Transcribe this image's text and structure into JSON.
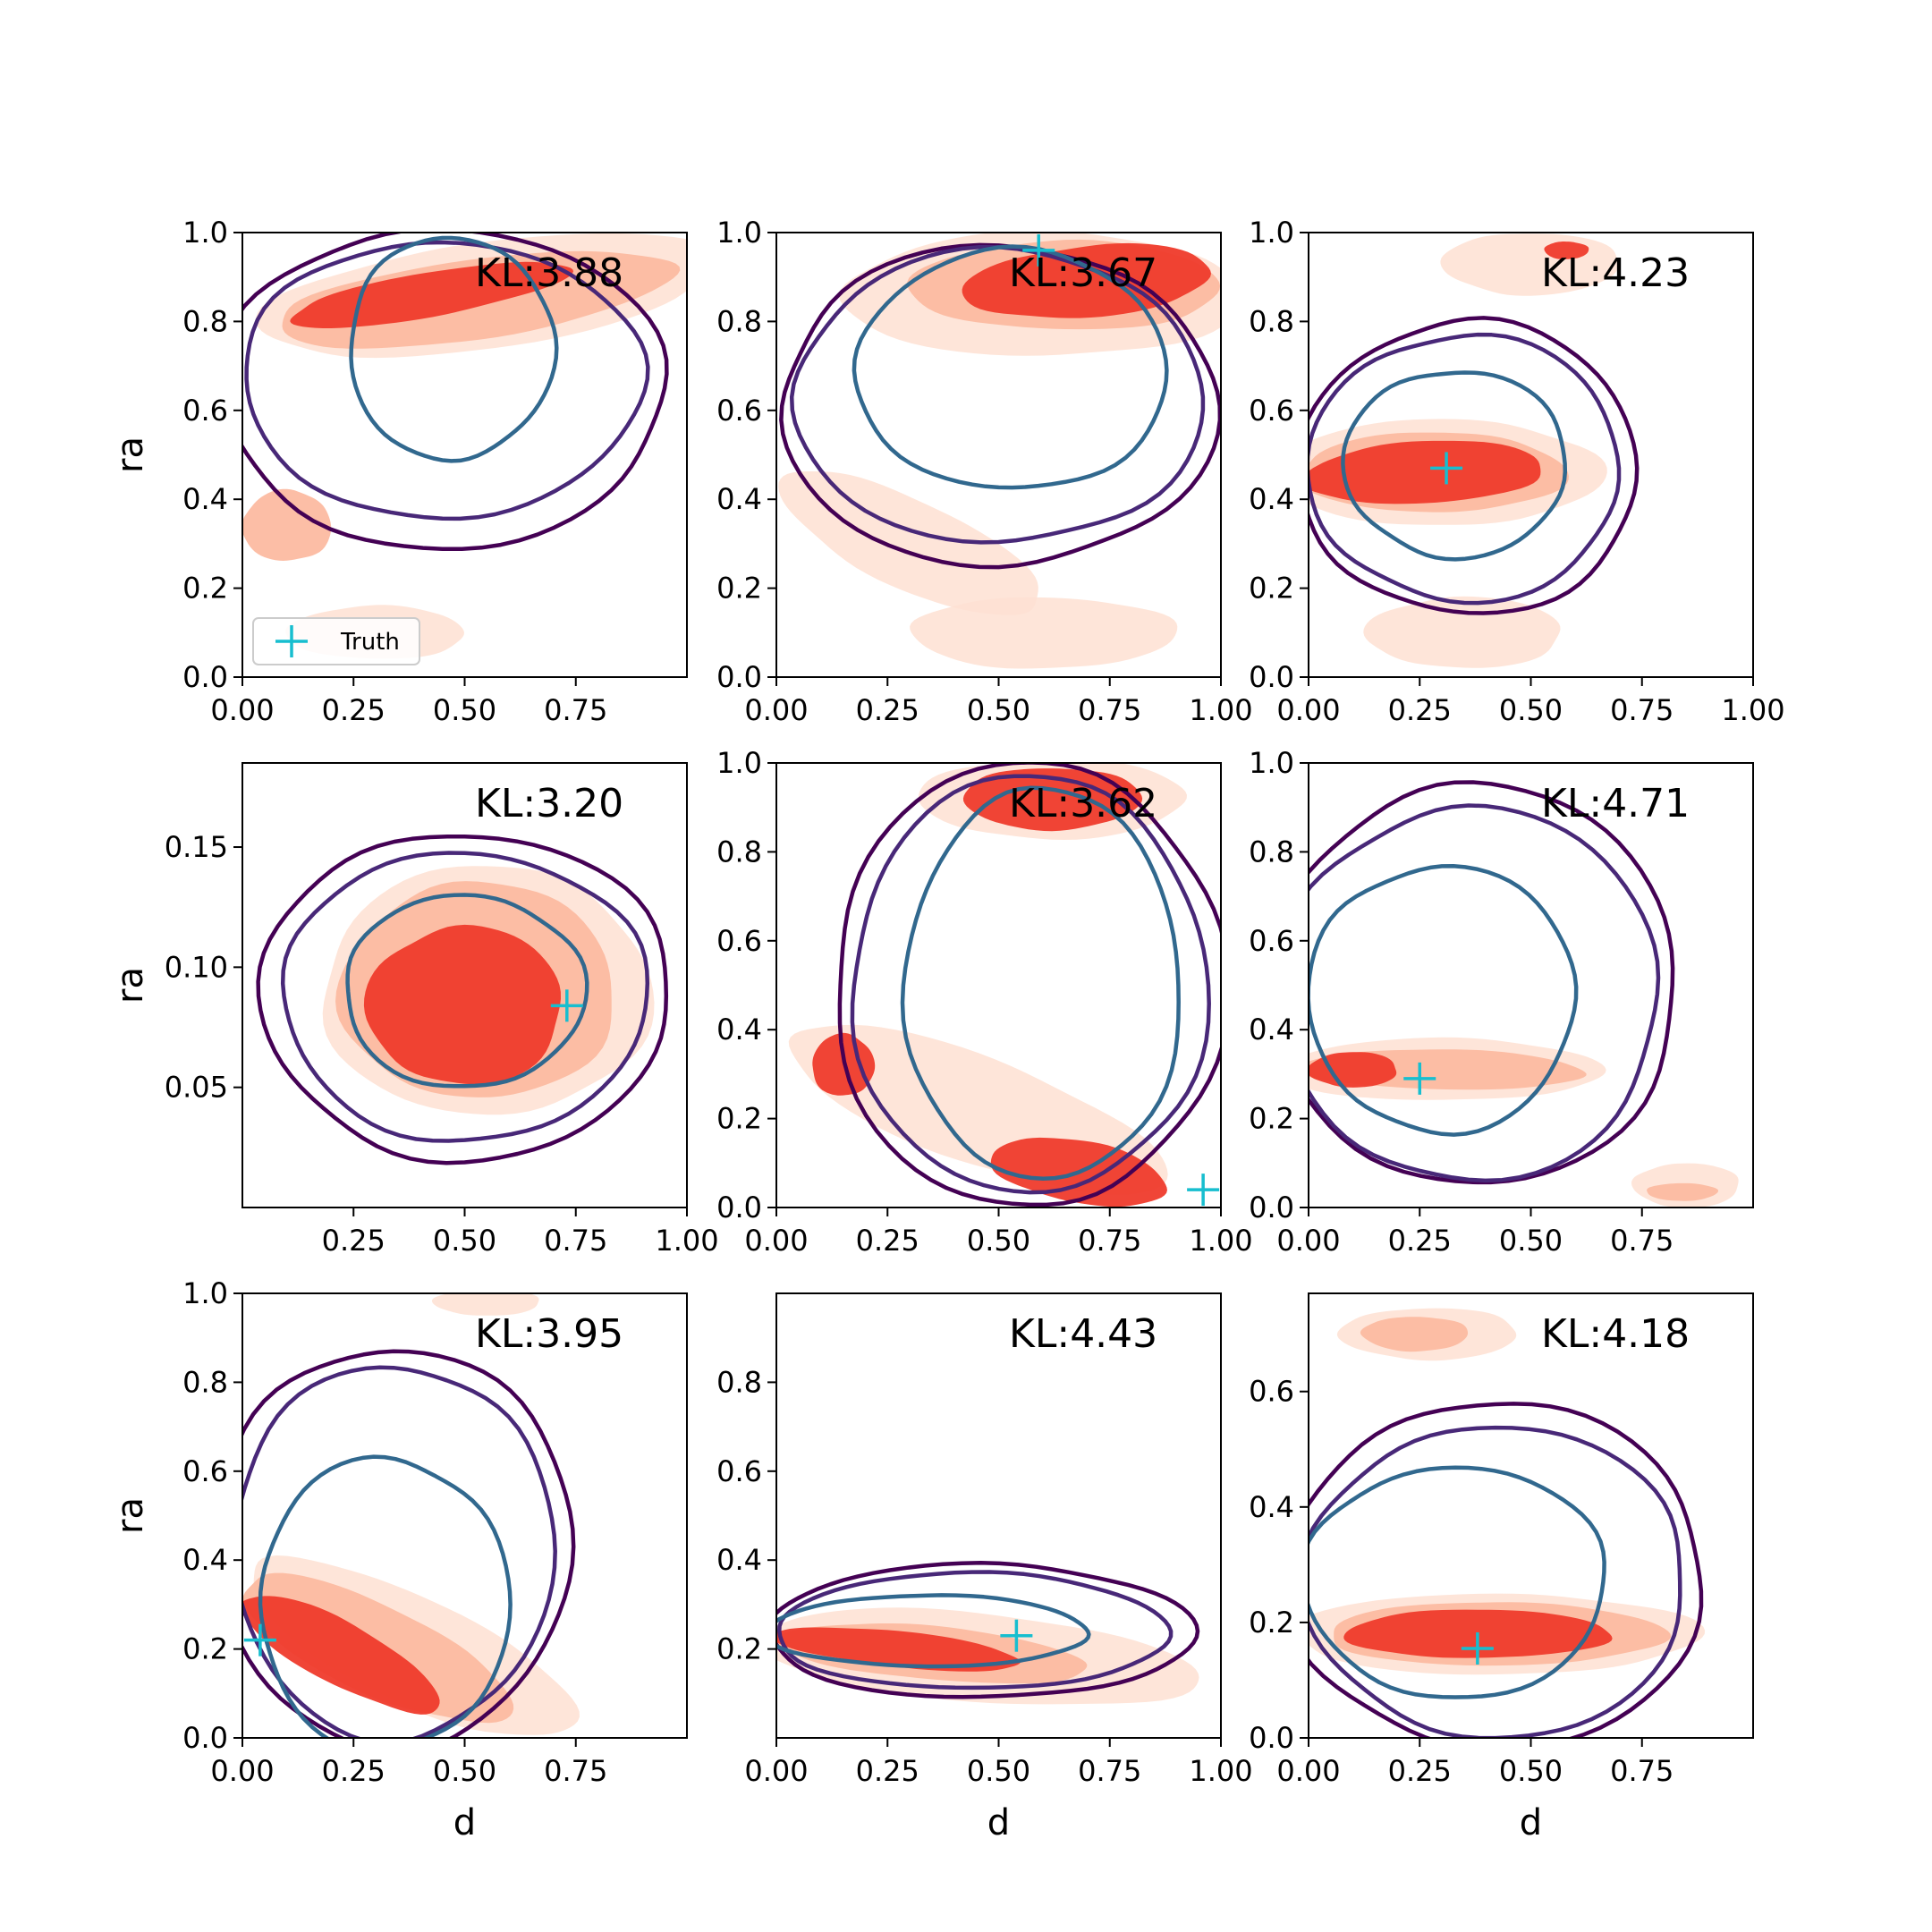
{
  "legend": {
    "label": "Truth",
    "marker_color": "#17becf"
  },
  "colors": {
    "contour_outer": "#440154",
    "contour_mid": "#482878",
    "contour_inner": "#31688e",
    "fill_light": "#fee0d2",
    "fill_mid": "#fcbba1",
    "fill_dark": "#ef3b2c",
    "truth_marker": "#17becf"
  },
  "chart_data": [
    {
      "type": "contour",
      "row": 0,
      "col": 0,
      "annotation": "KL:3.88",
      "xlabel": "",
      "ylabel": "ra",
      "xlim": [
        0,
        1
      ],
      "ylim": [
        0,
        1
      ],
      "xticks": [
        "0.00",
        "0.25",
        "0.50",
        "0.75"
      ],
      "xtick_values": [
        0,
        0.25,
        0.5,
        0.75
      ],
      "yticks": [
        "0.0",
        "0.2",
        "0.4",
        "0.6",
        "0.8",
        "1.0"
      ],
      "ytick_values": [
        0,
        0.2,
        0.4,
        0.6,
        0.8,
        1.0
      ],
      "truth": null,
      "show_legend": true,
      "model_contours": [
        {
          "level": "outer",
          "cx": 0.45,
          "cy": 0.65,
          "rx": 0.5,
          "ry": 0.36
        },
        {
          "level": "mid",
          "cx": 0.45,
          "cy": 0.67,
          "rx": 0.45,
          "ry": 0.31
        },
        {
          "level": "inner",
          "cx": 0.47,
          "cy": 0.74,
          "rx": 0.23,
          "ry": 0.25
        }
      ],
      "reference_blobs": [
        {
          "level": "light",
          "cx": 0.55,
          "cy": 0.86,
          "rx": 0.52,
          "ry": 0.12,
          "angle": 8
        },
        {
          "level": "mid",
          "cx": 0.52,
          "cy": 0.85,
          "rx": 0.45,
          "ry": 0.09,
          "angle": 8
        },
        {
          "level": "dark",
          "cx": 0.42,
          "cy": 0.86,
          "rx": 0.32,
          "ry": 0.05,
          "angle": 10
        },
        {
          "level": "mid",
          "cx": 0.1,
          "cy": 0.34,
          "rx": 0.1,
          "ry": 0.08,
          "angle": 0
        },
        {
          "level": "light",
          "cx": 0.3,
          "cy": 0.1,
          "rx": 0.2,
          "ry": 0.06,
          "angle": 0
        }
      ]
    },
    {
      "type": "contour",
      "row": 0,
      "col": 1,
      "annotation": "KL:3.67",
      "xlabel": "",
      "ylabel": "",
      "xlim": [
        0,
        1
      ],
      "ylim": [
        0,
        1
      ],
      "xticks": [
        "0.00",
        "0.25",
        "0.50",
        "0.75",
        "1.00"
      ],
      "xtick_values": [
        0,
        0.25,
        0.5,
        0.75,
        1.0
      ],
      "yticks": [
        "0.0",
        "0.2",
        "0.4",
        "0.6",
        "0.8",
        "1.0"
      ],
      "ytick_values": [
        0,
        0.2,
        0.4,
        0.6,
        0.8,
        1.0
      ],
      "truth": {
        "x": 0.59,
        "y": 0.96
      },
      "show_legend": false,
      "model_contours": [
        {
          "level": "outer",
          "cx": 0.5,
          "cy": 0.61,
          "rx": 0.49,
          "ry": 0.36
        },
        {
          "level": "mid",
          "cx": 0.5,
          "cy": 0.63,
          "rx": 0.46,
          "ry": 0.33
        },
        {
          "level": "inner",
          "cx": 0.53,
          "cy": 0.69,
          "rx": 0.35,
          "ry": 0.27
        }
      ],
      "reference_blobs": [
        {
          "level": "light",
          "cx": 0.6,
          "cy": 0.86,
          "rx": 0.45,
          "ry": 0.14,
          "angle": 0
        },
        {
          "level": "mid",
          "cx": 0.65,
          "cy": 0.88,
          "rx": 0.35,
          "ry": 0.1,
          "angle": 0
        },
        {
          "level": "dark",
          "cx": 0.7,
          "cy": 0.89,
          "rx": 0.28,
          "ry": 0.08,
          "angle": 5
        },
        {
          "level": "light",
          "cx": 0.3,
          "cy": 0.3,
          "rx": 0.32,
          "ry": 0.1,
          "angle": -25
        },
        {
          "level": "light",
          "cx": 0.6,
          "cy": 0.1,
          "rx": 0.3,
          "ry": 0.08,
          "angle": 0
        }
      ]
    },
    {
      "type": "contour",
      "row": 0,
      "col": 2,
      "annotation": "KL:4.23",
      "xlabel": "",
      "ylabel": "",
      "xlim": [
        0,
        1
      ],
      "ylim": [
        0,
        1
      ],
      "xticks": [
        "0.00",
        "0.25",
        "0.50",
        "0.75",
        "1.00"
      ],
      "xtick_values": [
        0,
        0.25,
        0.5,
        0.75,
        1.0
      ],
      "yticks": [
        "0.0",
        "0.2",
        "0.4",
        "0.6",
        "0.8",
        "1.0"
      ],
      "ytick_values": [
        0,
        0.2,
        0.4,
        0.6,
        0.8,
        1.0
      ],
      "truth": {
        "x": 0.31,
        "y": 0.47
      },
      "show_legend": false,
      "model_contours": [
        {
          "level": "outer",
          "cx": 0.36,
          "cy": 0.47,
          "rx": 0.38,
          "ry": 0.33
        },
        {
          "level": "mid",
          "cx": 0.35,
          "cy": 0.47,
          "rx": 0.35,
          "ry": 0.3
        },
        {
          "level": "inner",
          "cx": 0.33,
          "cy": 0.48,
          "rx": 0.25,
          "ry": 0.21
        }
      ],
      "reference_blobs": [
        {
          "level": "light",
          "cx": 0.5,
          "cy": 0.93,
          "rx": 0.2,
          "ry": 0.07,
          "angle": 0
        },
        {
          "level": "dark",
          "cx": 0.58,
          "cy": 0.96,
          "rx": 0.05,
          "ry": 0.02,
          "angle": 0
        },
        {
          "level": "light",
          "cx": 0.3,
          "cy": 0.46,
          "rx": 0.36,
          "ry": 0.12,
          "angle": 0
        },
        {
          "level": "mid",
          "cx": 0.28,
          "cy": 0.46,
          "rx": 0.3,
          "ry": 0.09,
          "angle": 0
        },
        {
          "level": "dark",
          "cx": 0.26,
          "cy": 0.46,
          "rx": 0.27,
          "ry": 0.07,
          "angle": 3
        },
        {
          "level": "light",
          "cx": 0.35,
          "cy": 0.1,
          "rx": 0.22,
          "ry": 0.08,
          "angle": 0
        }
      ]
    },
    {
      "type": "contour",
      "row": 1,
      "col": 0,
      "annotation": "KL:3.20",
      "xlabel": "",
      "ylabel": "ra",
      "xlim": [
        0,
        1
      ],
      "ylim": [
        0,
        0.185
      ],
      "xticks": [
        "0.25",
        "0.50",
        "0.75",
        "1.00"
      ],
      "xtick_values": [
        0.25,
        0.5,
        0.75,
        1.0
      ],
      "yticks": [
        "0.05",
        "0.10",
        "0.15"
      ],
      "ytick_values": [
        0.05,
        0.1,
        0.15
      ],
      "truth": {
        "x": 0.73,
        "y": 0.084
      },
      "show_legend": false,
      "model_contours": [
        {
          "level": "outer",
          "cx": 0.5,
          "cy": 0.088,
          "rx": 0.46,
          "ry": 0.068
        },
        {
          "level": "mid",
          "cx": 0.5,
          "cy": 0.088,
          "rx": 0.41,
          "ry": 0.06
        },
        {
          "level": "inner",
          "cx": 0.5,
          "cy": 0.09,
          "rx": 0.27,
          "ry": 0.04
        }
      ],
      "reference_blobs": [
        {
          "level": "light",
          "cx": 0.55,
          "cy": 0.09,
          "rx": 0.37,
          "ry": 0.052,
          "angle": 0
        },
        {
          "level": "mid",
          "cx": 0.53,
          "cy": 0.09,
          "rx": 0.31,
          "ry": 0.045,
          "angle": 0
        },
        {
          "level": "dark",
          "cx": 0.5,
          "cy": 0.084,
          "rx": 0.22,
          "ry": 0.033,
          "angle": 0
        }
      ]
    },
    {
      "type": "contour",
      "row": 1,
      "col": 1,
      "annotation": "KL:3.62",
      "xlabel": "",
      "ylabel": "",
      "xlim": [
        0,
        1
      ],
      "ylim": [
        0,
        1
      ],
      "xticks": [
        "0.00",
        "0.25",
        "0.50",
        "0.75",
        "1.00"
      ],
      "xtick_values": [
        0,
        0.25,
        0.5,
        0.75,
        1.0
      ],
      "yticks": [
        "0.0",
        "0.2",
        "0.4",
        "0.6",
        "0.8",
        "1.0"
      ],
      "ytick_values": [
        0,
        0.2,
        0.4,
        0.6,
        0.8,
        1.0
      ],
      "truth": {
        "x": 0.96,
        "y": 0.04
      },
      "show_legend": false,
      "model_contours": [
        {
          "level": "outer",
          "cx": 0.57,
          "cy": 0.5,
          "rx": 0.44,
          "ry": 0.5
        },
        {
          "level": "mid",
          "cx": 0.57,
          "cy": 0.5,
          "rx": 0.4,
          "ry": 0.47
        },
        {
          "level": "inner",
          "cx": 0.6,
          "cy": 0.5,
          "rx": 0.31,
          "ry": 0.44
        }
      ],
      "reference_blobs": [
        {
          "level": "light",
          "cx": 0.62,
          "cy": 0.92,
          "rx": 0.3,
          "ry": 0.09,
          "angle": 0
        },
        {
          "level": "dark",
          "cx": 0.62,
          "cy": 0.92,
          "rx": 0.2,
          "ry": 0.07,
          "angle": 0
        },
        {
          "level": "light",
          "cx": 0.45,
          "cy": 0.22,
          "rx": 0.45,
          "ry": 0.12,
          "angle": -20
        },
        {
          "level": "dark",
          "cx": 0.15,
          "cy": 0.32,
          "rx": 0.07,
          "ry": 0.07,
          "angle": 0
        },
        {
          "level": "dark",
          "cx": 0.68,
          "cy": 0.08,
          "rx": 0.2,
          "ry": 0.07,
          "angle": -10
        }
      ]
    },
    {
      "type": "contour",
      "row": 1,
      "col": 2,
      "annotation": "KL:4.71",
      "xlabel": "",
      "ylabel": "",
      "xlim": [
        0,
        1
      ],
      "ylim": [
        0,
        1
      ],
      "xticks": [
        "0.00",
        "0.25",
        "0.50",
        "0.75"
      ],
      "xtick_values": [
        0,
        0.25,
        0.5,
        0.75
      ],
      "yticks": [
        "0.0",
        "0.2",
        "0.4",
        "0.6",
        "0.8",
        "1.0"
      ],
      "ytick_values": [
        0,
        0.2,
        0.4,
        0.6,
        0.8,
        1.0
      ],
      "truth": {
        "x": 0.25,
        "y": 0.29
      },
      "show_legend": false,
      "model_contours": [
        {
          "level": "outer",
          "cx": 0.37,
          "cy": 0.5,
          "rx": 0.46,
          "ry": 0.45
        },
        {
          "level": "mid",
          "cx": 0.36,
          "cy": 0.48,
          "rx": 0.43,
          "ry": 0.42
        },
        {
          "level": "inner",
          "cx": 0.3,
          "cy": 0.47,
          "rx": 0.3,
          "ry": 0.3
        }
      ],
      "reference_blobs": [
        {
          "level": "light",
          "cx": 0.3,
          "cy": 0.31,
          "rx": 0.36,
          "ry": 0.07,
          "angle": 0
        },
        {
          "level": "mid",
          "cx": 0.3,
          "cy": 0.31,
          "rx": 0.32,
          "ry": 0.045,
          "angle": -1
        },
        {
          "level": "dark",
          "cx": 0.1,
          "cy": 0.31,
          "rx": 0.1,
          "ry": 0.04,
          "angle": 0
        },
        {
          "level": "light",
          "cx": 0.85,
          "cy": 0.05,
          "rx": 0.12,
          "ry": 0.05,
          "angle": 0
        },
        {
          "level": "mid",
          "cx": 0.84,
          "cy": 0.035,
          "rx": 0.08,
          "ry": 0.02,
          "angle": 0
        }
      ]
    },
    {
      "type": "contour",
      "row": 2,
      "col": 0,
      "annotation": "KL:3.95",
      "xlabel": "d",
      "ylabel": "ra",
      "xlim": [
        0,
        1
      ],
      "ylim": [
        0,
        1
      ],
      "xticks": [
        "0.00",
        "0.25",
        "0.50",
        "0.75"
      ],
      "xtick_values": [
        0,
        0.25,
        0.5,
        0.75
      ],
      "yticks": [
        "0.0",
        "0.2",
        "0.4",
        "0.6",
        "0.8",
        "1.0"
      ],
      "ytick_values": [
        0,
        0.2,
        0.4,
        0.6,
        0.8,
        1.0
      ],
      "truth": {
        "x": 0.04,
        "y": 0.22
      },
      "show_legend": false,
      "model_contours": [
        {
          "level": "outer",
          "cx": 0.34,
          "cy": 0.43,
          "rx": 0.4,
          "ry": 0.45
        },
        {
          "level": "mid",
          "cx": 0.34,
          "cy": 0.42,
          "rx": 0.36,
          "ry": 0.42
        },
        {
          "level": "inner",
          "cx": 0.32,
          "cy": 0.3,
          "rx": 0.28,
          "ry": 0.33
        }
      ],
      "reference_blobs": [
        {
          "level": "light",
          "cx": 0.55,
          "cy": 0.98,
          "rx": 0.12,
          "ry": 0.03,
          "angle": 0
        },
        {
          "level": "light",
          "cx": 0.38,
          "cy": 0.2,
          "rx": 0.4,
          "ry": 0.12,
          "angle": -25
        },
        {
          "level": "mid",
          "cx": 0.3,
          "cy": 0.2,
          "rx": 0.33,
          "ry": 0.1,
          "angle": -25
        },
        {
          "level": "dark",
          "cx": 0.22,
          "cy": 0.19,
          "rx": 0.25,
          "ry": 0.07,
          "angle": -28
        }
      ]
    },
    {
      "type": "contour",
      "row": 2,
      "col": 1,
      "annotation": "KL:4.43",
      "xlabel": "d",
      "ylabel": "",
      "xlim": [
        0,
        1
      ],
      "ylim": [
        0,
        1
      ],
      "xticks": [
        "0.00",
        "0.25",
        "0.50",
        "0.75",
        "1.00"
      ],
      "xtick_values": [
        0,
        0.25,
        0.5,
        0.75,
        1.0
      ],
      "yticks": [
        "0.2",
        "0.4",
        "0.6",
        "0.8"
      ],
      "ytick_values": [
        0.2,
        0.4,
        0.6,
        0.8
      ],
      "truth": {
        "x": 0.54,
        "y": 0.23
      },
      "show_legend": false,
      "model_contours": [
        {
          "level": "outer",
          "cx": 0.46,
          "cy": 0.24,
          "rx": 0.48,
          "ry": 0.15
        },
        {
          "level": "mid",
          "cx": 0.44,
          "cy": 0.24,
          "rx": 0.44,
          "ry": 0.13
        },
        {
          "level": "inner",
          "cx": 0.34,
          "cy": 0.24,
          "rx": 0.36,
          "ry": 0.08
        }
      ],
      "reference_blobs": [
        {
          "level": "light",
          "cx": 0.45,
          "cy": 0.18,
          "rx": 0.5,
          "ry": 0.1,
          "angle": -5
        },
        {
          "level": "mid",
          "cx": 0.35,
          "cy": 0.19,
          "rx": 0.35,
          "ry": 0.06,
          "angle": -5
        },
        {
          "level": "dark",
          "cx": 0.27,
          "cy": 0.2,
          "rx": 0.28,
          "ry": 0.04,
          "angle": -6
        }
      ]
    },
    {
      "type": "contour",
      "row": 2,
      "col": 2,
      "annotation": "KL:4.18",
      "xlabel": "d",
      "ylabel": "",
      "xlim": [
        0,
        1
      ],
      "ylim": [
        0,
        0.77
      ],
      "xticks": [
        "0.00",
        "0.25",
        "0.50",
        "0.75"
      ],
      "xtick_values": [
        0,
        0.25,
        0.5,
        0.75
      ],
      "yticks": [
        "0.0",
        "0.2",
        "0.4",
        "0.6"
      ],
      "ytick_values": [
        0,
        0.2,
        0.4,
        0.6
      ],
      "truth": {
        "x": 0.38,
        "y": 0.155
      },
      "show_legend": false,
      "model_contours": [
        {
          "level": "outer",
          "cx": 0.42,
          "cy": 0.28,
          "rx": 0.47,
          "ry": 0.3
        },
        {
          "level": "mid",
          "cx": 0.42,
          "cy": 0.27,
          "rx": 0.43,
          "ry": 0.27
        },
        {
          "level": "inner",
          "cx": 0.33,
          "cy": 0.27,
          "rx": 0.34,
          "ry": 0.2
        }
      ],
      "reference_blobs": [
        {
          "level": "light",
          "cx": 0.27,
          "cy": 0.7,
          "rx": 0.2,
          "ry": 0.045,
          "angle": 0
        },
        {
          "level": "mid",
          "cx": 0.24,
          "cy": 0.7,
          "rx": 0.12,
          "ry": 0.03,
          "angle": 0
        },
        {
          "level": "light",
          "cx": 0.42,
          "cy": 0.18,
          "rx": 0.46,
          "ry": 0.07,
          "angle": 0
        },
        {
          "level": "mid",
          "cx": 0.42,
          "cy": 0.18,
          "rx": 0.38,
          "ry": 0.055,
          "angle": 0
        },
        {
          "level": "dark",
          "cx": 0.38,
          "cy": 0.18,
          "rx": 0.3,
          "ry": 0.042,
          "angle": 0
        }
      ]
    }
  ]
}
